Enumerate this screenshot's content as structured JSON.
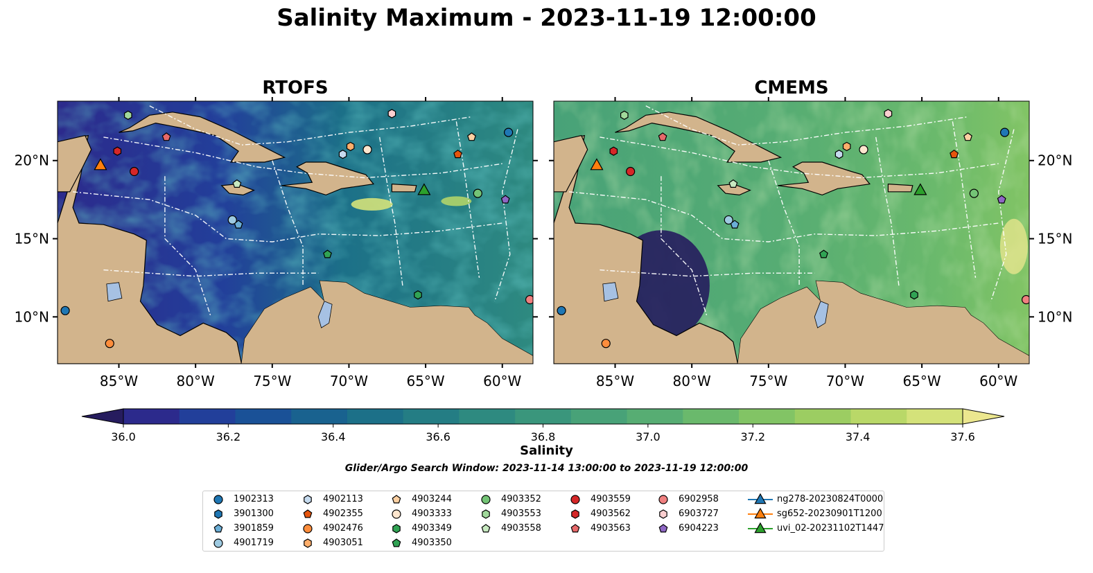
{
  "title": "Salinity Maximum - 2023-11-19 12:00:00",
  "panels": [
    {
      "name": "RTOFS",
      "model": "rtofs"
    },
    {
      "name": "CMEMS",
      "model": "cmems"
    }
  ],
  "map_extent": {
    "lon_min": -89,
    "lon_max": -58,
    "lat_min": 7,
    "lat_max": 23.8
  },
  "x_ticks": [
    {
      "value": -85,
      "label": "85°W"
    },
    {
      "value": -80,
      "label": "80°W"
    },
    {
      "value": -75,
      "label": "75°W"
    },
    {
      "value": -70,
      "label": "70°W"
    },
    {
      "value": -65,
      "label": "65°W"
    },
    {
      "value": -60,
      "label": "60°W"
    }
  ],
  "y_ticks": [
    {
      "value": 20,
      "label": "20°N"
    },
    {
      "value": 15,
      "label": "15°N"
    },
    {
      "value": 10,
      "label": "10°N"
    }
  ],
  "colorbar": {
    "label": "Salinity",
    "min": 36.0,
    "max": 37.6,
    "step": 0.1,
    "tick_values": [
      36.0,
      36.2,
      36.4,
      36.6,
      36.8,
      37.0,
      37.2,
      37.4,
      37.6
    ],
    "tick_labels": [
      "36.0",
      "36.2",
      "36.4",
      "36.6",
      "36.8",
      "37.0",
      "37.2",
      "37.4",
      "37.6"
    ],
    "extend": "both",
    "colors": [
      "#261c5e",
      "#2c2a8c",
      "#223f9a",
      "#1a5197",
      "#19628f",
      "#1c7088",
      "#247d84",
      "#2e8a80",
      "#3a967c",
      "#48a278",
      "#57ad73",
      "#6ab96c",
      "#82c465",
      "#9ccd62",
      "#b9d868",
      "#d4e27a",
      "#ece78f"
    ]
  },
  "search_window_label": "Glider/Argo Search Window: 2023-11-14 13:00:00 to 2023-11-19 12:00:00",
  "land_color": "#d2b48c",
  "lake_color": "#a6c1e3",
  "observations": [
    {
      "id": "1902313",
      "marker": "circle",
      "color": "#1f77b4",
      "lon": -59.6,
      "lat": 21.8
    },
    {
      "id": "3901300",
      "marker": "hexagon",
      "color": "#1f77b4",
      "lon": null,
      "lat": null
    },
    {
      "id": "3901859",
      "marker": "pentagon",
      "color": "#6baed6",
      "lon": -77.2,
      "lat": 15.9
    },
    {
      "id": "4901719",
      "marker": "circle",
      "color": "#9ecae1",
      "lon": -77.6,
      "lat": 16.2
    },
    {
      "id": "4902113",
      "marker": "hexagon",
      "color": "#c6dbef",
      "lon": -70.4,
      "lat": 20.4
    },
    {
      "id": "4902355",
      "marker": "pentagon",
      "color": "#e6550d",
      "lon": -62.9,
      "lat": 20.4
    },
    {
      "id": "4902476",
      "marker": "circle",
      "color": "#fd8d3c",
      "lon": -85.6,
      "lat": 8.3
    },
    {
      "id": "4903051",
      "marker": "hexagon",
      "color": "#fdae6b",
      "lon": -69.9,
      "lat": 20.9
    },
    {
      "id": "4903244",
      "marker": "pentagon",
      "color": "#fdd0a2",
      "lon": -62.0,
      "lat": 21.5
    },
    {
      "id": "4903333",
      "marker": "circle",
      "color": "#fee6ce",
      "lon": -68.8,
      "lat": 20.7
    },
    {
      "id": "4903349",
      "marker": "hexagon",
      "color": "#31a354",
      "lon": -65.5,
      "lat": 11.4
    },
    {
      "id": "4903350",
      "marker": "pentagon",
      "color": "#31a354",
      "lon": -71.4,
      "lat": 14.0
    },
    {
      "id": "4903352",
      "marker": "circle",
      "color": "#74c476",
      "lon": -61.6,
      "lat": 17.9
    },
    {
      "id": "4903553",
      "marker": "hexagon",
      "color": "#a1d99b",
      "lon": -84.4,
      "lat": 22.9
    },
    {
      "id": "4903558",
      "marker": "pentagon",
      "color": "#c7e9c0",
      "lon": -77.3,
      "lat": 18.5
    },
    {
      "id": "4903559",
      "marker": "circle",
      "color": "#d62728",
      "lon": -84.0,
      "lat": 19.3
    },
    {
      "id": "4903562",
      "marker": "hexagon",
      "color": "#d62728",
      "lon": -85.1,
      "lat": 20.6
    },
    {
      "id": "4903563",
      "marker": "pentagon",
      "color": "#e7696a",
      "lon": -81.9,
      "lat": 21.5
    },
    {
      "id": "6902958",
      "marker": "circle",
      "color": "#f08080",
      "lon": -58.2,
      "lat": 11.1
    },
    {
      "id": "6903727",
      "marker": "hexagon",
      "color": "#fbcfd0",
      "lon": -67.2,
      "lat": 23.0
    },
    {
      "id": "6904223",
      "marker": "pentagon",
      "color": "#8e67c4",
      "lon": -59.8,
      "lat": 17.5
    },
    {
      "id": "ng278-20230824T0000",
      "marker": "triangle",
      "color": "#1f77b4",
      "line": true,
      "lon": null,
      "lat": null
    },
    {
      "id": "sg652-20230901T1200",
      "marker": "triangle",
      "color": "#ff7f0e",
      "line": true,
      "lon": -86.2,
      "lat": 19.7
    },
    {
      "id": "uvi_02-20231102T1447",
      "marker": "triangle",
      "color": "#2ca02c",
      "line": true,
      "lon": -65.1,
      "lat": 18.1
    }
  ],
  "extra_markers": [
    {
      "ref": "1902313",
      "marker": "circle",
      "color": "#1f77b4",
      "lon": -88.5,
      "lat": 10.4
    }
  ]
}
